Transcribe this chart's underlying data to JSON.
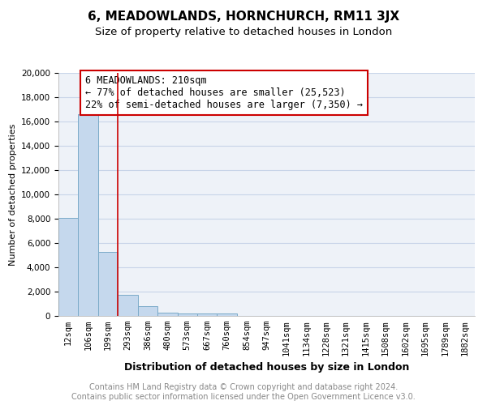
{
  "title": "6, MEADOWLANDS, HORNCHURCH, RM11 3JX",
  "subtitle": "Size of property relative to detached houses in London",
  "xlabel": "Distribution of detached houses by size in London",
  "ylabel": "Number of detached properties",
  "footer_line1": "Contains HM Land Registry data © Crown copyright and database right 2024.",
  "footer_line2": "Contains public sector information licensed under the Open Government Licence v3.0.",
  "annotation_title": "6 MEADOWLANDS: 210sqm",
  "annotation_line2": "← 77% of detached houses are smaller (25,523)",
  "annotation_line3": "22% of semi-detached houses are larger (7,350) →",
  "categories": [
    "12sqm",
    "106sqm",
    "199sqm",
    "293sqm",
    "386sqm",
    "480sqm",
    "573sqm",
    "667sqm",
    "760sqm",
    "854sqm",
    "947sqm",
    "1041sqm",
    "1134sqm",
    "1228sqm",
    "1321sqm",
    "1415sqm",
    "1508sqm",
    "1602sqm",
    "1695sqm",
    "1789sqm",
    "1882sqm"
  ],
  "values": [
    8100,
    16600,
    5300,
    1750,
    800,
    300,
    200,
    200,
    200,
    0,
    0,
    0,
    0,
    0,
    0,
    0,
    0,
    0,
    0,
    0,
    0
  ],
  "bar_color": "#c5d8ed",
  "bar_edge_color": "#7aaac8",
  "annotation_box_color": "#ffffff",
  "annotation_box_edge": "#cc0000",
  "vline_color": "#cc0000",
  "vline_x": 2,
  "ylim": [
    0,
    20000
  ],
  "yticks": [
    0,
    2000,
    4000,
    6000,
    8000,
    10000,
    12000,
    14000,
    16000,
    18000,
    20000
  ],
  "grid_color": "#c8d4e8",
  "background_color": "#eef2f8",
  "title_fontsize": 11,
  "subtitle_fontsize": 9.5,
  "xlabel_fontsize": 9,
  "ylabel_fontsize": 8,
  "tick_fontsize": 7.5,
  "footer_fontsize": 7,
  "annotation_fontsize": 8.5
}
